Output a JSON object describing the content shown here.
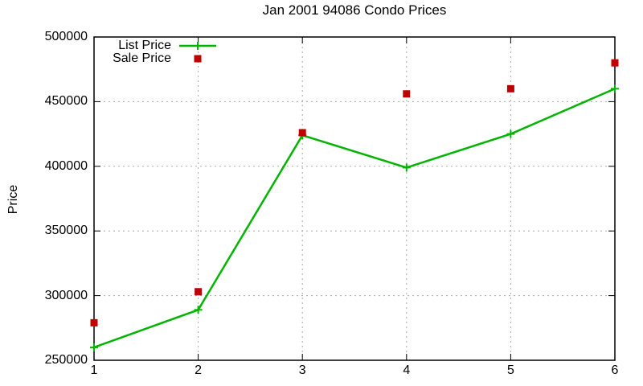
{
  "chart_data": {
    "type": "line",
    "title": "Jan 2001 94086 Condo Prices",
    "xlabel": "",
    "ylabel": "Price",
    "x": [
      1,
      2,
      3,
      4,
      5,
      6
    ],
    "xlim": [
      1,
      6
    ],
    "ylim": [
      250000,
      500000
    ],
    "x_ticks": [
      1,
      2,
      3,
      4,
      5,
      6
    ],
    "y_ticks": [
      250000,
      300000,
      350000,
      400000,
      450000,
      500000
    ],
    "grid": "dashed-gray-at-all-ticks",
    "legend_position": "top-left-inside",
    "background": "#ffffff",
    "axis_color": "#000000",
    "grid_color": "#aaaaaa",
    "series": [
      {
        "name": "List Price",
        "style": "line-with-plus-markers",
        "color": "#00b400",
        "values": [
          260000,
          289000,
          424000,
          399000,
          425000,
          460000
        ]
      },
      {
        "name": "Sale Price",
        "style": "square-points-only",
        "color": "#c00000",
        "values": [
          279000,
          303000,
          426000,
          456000,
          460000,
          480000
        ]
      }
    ]
  }
}
